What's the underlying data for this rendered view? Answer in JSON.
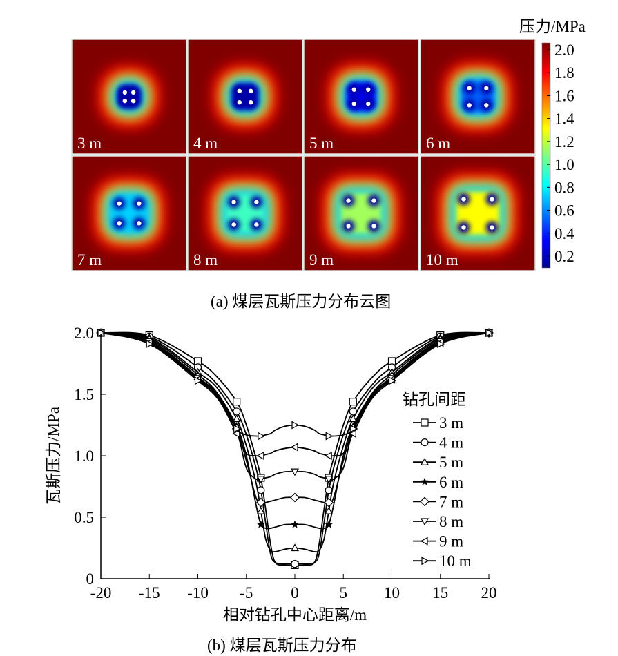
{
  "figure_a": {
    "caption": "(a)  煤层瓦斯压力分布云图",
    "panels": [
      {
        "label": "3 m",
        "spacing": 3
      },
      {
        "label": "4 m",
        "spacing": 4
      },
      {
        "label": "5 m",
        "spacing": 5
      },
      {
        "label": "6 m",
        "spacing": 6
      },
      {
        "label": "7 m",
        "spacing": 7
      },
      {
        "label": "8 m",
        "spacing": 8
      },
      {
        "label": "9 m",
        "spacing": 9
      },
      {
        "label": "10 m",
        "spacing": 10
      }
    ],
    "colorbar": {
      "title": "压力/MPa",
      "colormap": "jet",
      "range": [
        0.1,
        2.0
      ],
      "ticks": [
        "2.0",
        "1.8",
        "1.6",
        "1.4",
        "1.2",
        "1.0",
        "0.8",
        "0.6",
        "0.4",
        "0.2"
      ]
    },
    "colors": {
      "background": "#800000",
      "hole": "#ffffff",
      "label": "#ffffff"
    }
  },
  "chart_data": {
    "type": "line",
    "caption": "(b)  煤层瓦斯压力分布",
    "xlabel": "相对钻孔中心距离/m",
    "ylabel": "瓦斯压力/MPa",
    "xlim": [
      -20,
      20
    ],
    "ylim": [
      0,
      2.0
    ],
    "xticks": [
      "-20",
      "-15",
      "-10",
      "-5",
      "0",
      "5",
      "10",
      "15",
      "20"
    ],
    "yticks": [
      "0",
      "0.5",
      "1.0",
      "1.5",
      "2.0"
    ],
    "grid": false,
    "legend": {
      "title": "钻孔间距",
      "position": "right"
    },
    "x": [
      -20,
      -15,
      -10,
      -8,
      -6,
      -5,
      -4,
      -3.5,
      -3,
      -2.5,
      -2,
      -1,
      0,
      1,
      2,
      2.5,
      3,
      3.5,
      4,
      5,
      6,
      8,
      10,
      15,
      20
    ],
    "series": [
      {
        "name": "3 m",
        "marker": "square",
        "values": [
          2.0,
          1.98,
          1.77,
          1.64,
          1.44,
          1.25,
          0.98,
          0.82,
          0.56,
          0.28,
          0.13,
          0.11,
          0.11,
          0.11,
          0.13,
          0.28,
          0.56,
          0.82,
          0.98,
          1.25,
          1.44,
          1.64,
          1.77,
          1.98,
          2.0
        ]
      },
      {
        "name": "4 m",
        "marker": "circle",
        "values": [
          2.0,
          1.97,
          1.72,
          1.58,
          1.36,
          1.17,
          0.9,
          0.72,
          0.45,
          0.2,
          0.13,
          0.12,
          0.12,
          0.12,
          0.13,
          0.2,
          0.45,
          0.72,
          0.9,
          1.17,
          1.36,
          1.58,
          1.72,
          1.97,
          2.0
        ]
      },
      {
        "name": "5 m",
        "marker": "triangle-up",
        "values": [
          2.0,
          1.96,
          1.68,
          1.55,
          1.3,
          1.08,
          0.78,
          0.55,
          0.32,
          0.23,
          0.22,
          0.24,
          0.25,
          0.24,
          0.22,
          0.23,
          0.32,
          0.55,
          0.78,
          1.08,
          1.3,
          1.55,
          1.68,
          1.96,
          2.0
        ]
      },
      {
        "name": "6 m",
        "marker": "star",
        "values": [
          2.0,
          1.95,
          1.66,
          1.51,
          1.24,
          1.0,
          0.6,
          0.44,
          0.41,
          0.41,
          0.42,
          0.44,
          0.44,
          0.44,
          0.42,
          0.41,
          0.41,
          0.44,
          0.6,
          1.0,
          1.24,
          1.51,
          1.66,
          1.95,
          2.0
        ]
      },
      {
        "name": "7 m",
        "marker": "diamond",
        "values": [
          2.0,
          1.94,
          1.64,
          1.5,
          1.22,
          0.96,
          0.66,
          0.62,
          0.62,
          0.63,
          0.64,
          0.66,
          0.66,
          0.66,
          0.64,
          0.63,
          0.62,
          0.62,
          0.66,
          0.96,
          1.22,
          1.5,
          1.64,
          1.94,
          2.0
        ]
      },
      {
        "name": "8 m",
        "marker": "triangle-down",
        "values": [
          2.0,
          1.93,
          1.63,
          1.49,
          1.2,
          0.9,
          0.81,
          0.81,
          0.82,
          0.83,
          0.85,
          0.87,
          0.87,
          0.87,
          0.85,
          0.83,
          0.82,
          0.81,
          0.81,
          0.9,
          1.2,
          1.49,
          1.63,
          1.93,
          2.0
        ]
      },
      {
        "name": "9 m",
        "marker": "triangle-left",
        "values": [
          2.0,
          1.92,
          1.62,
          1.48,
          1.18,
          1.02,
          1.0,
          1.0,
          1.01,
          1.02,
          1.04,
          1.06,
          1.07,
          1.06,
          1.04,
          1.02,
          1.01,
          1.0,
          1.0,
          1.02,
          1.18,
          1.48,
          1.62,
          1.92,
          2.0
        ]
      },
      {
        "name": "10 m",
        "marker": "triangle-right",
        "values": [
          2.0,
          1.91,
          1.61,
          1.47,
          1.22,
          1.17,
          1.16,
          1.16,
          1.17,
          1.18,
          1.21,
          1.24,
          1.25,
          1.24,
          1.21,
          1.18,
          1.17,
          1.16,
          1.16,
          1.17,
          1.22,
          1.47,
          1.61,
          1.91,
          2.0
        ]
      }
    ]
  }
}
